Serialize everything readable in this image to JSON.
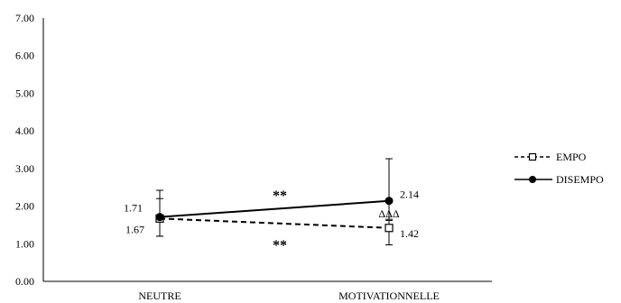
{
  "chart_data": {
    "type": "line",
    "categories": [
      "NEUTRE",
      "MOTIVATIONNELLE"
    ],
    "ylim": [
      0,
      7
    ],
    "yticks": [
      "0.00",
      "1.00",
      "2.00",
      "3.00",
      "4.00",
      "5.00",
      "6.00",
      "7.00"
    ],
    "grid": false,
    "legend_position": "right",
    "series": [
      {
        "name": "EMPO",
        "values": [
          1.67,
          1.42
        ],
        "labels": [
          "1.67",
          "1.42"
        ],
        "error": [
          [
            1.2,
            2.2
          ],
          [
            0.97,
            1.62
          ]
        ],
        "line_style": "dashed",
        "marker": "open-square"
      },
      {
        "name": "DISEMPO",
        "values": [
          1.71,
          2.14
        ],
        "labels": [
          "1.71",
          "2.14"
        ],
        "error": [
          [
            1.2,
            2.42
          ],
          [
            1.65,
            3.26
          ]
        ],
        "line_style": "solid",
        "marker": "filled-circle"
      }
    ],
    "annotations": [
      {
        "text": "**",
        "between": [
          "NEUTRE",
          "MOTIVATIONNELLE"
        ],
        "series": "DISEMPO"
      },
      {
        "text": "**",
        "between": [
          "NEUTRE",
          "MOTIVATIONNELLE"
        ],
        "series": "EMPO"
      },
      {
        "text": "ΔΔΔ",
        "category": "MOTIVATIONNELLE"
      }
    ]
  }
}
